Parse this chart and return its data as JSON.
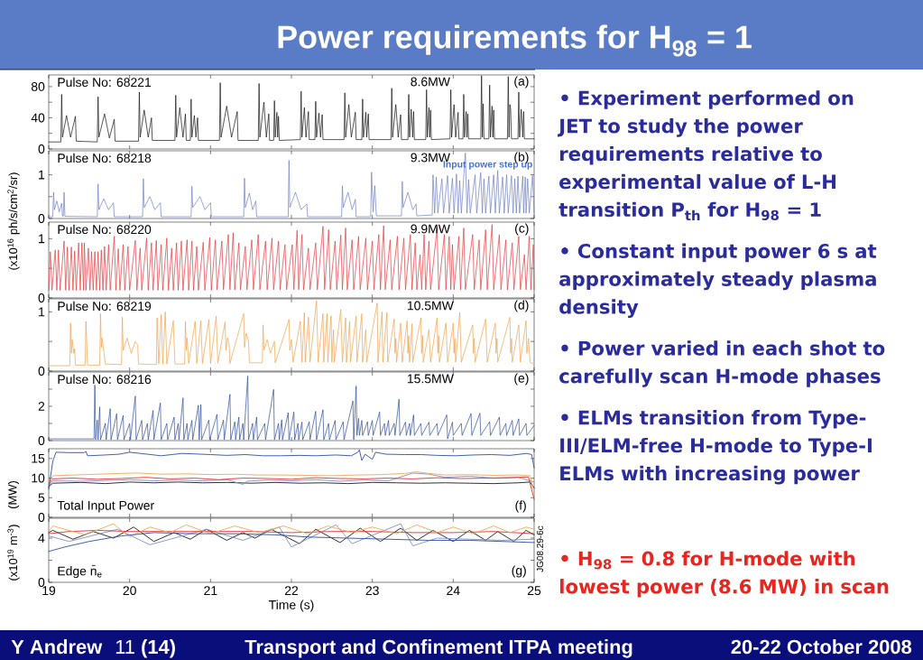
{
  "chart_data": [
    {
      "type": "other",
      "title": "Power requirements for H$_{98}$ = 1",
      "annotations": [
        "• Experiment performed on JET to study the power requirements relative to experimental value of L-H transition P$_{th}$ for H$_{98}$ = 1",
        "• Constant input power 6 s at approximately steady plasma density",
        "• Power varied in each shot to carefully scan H-mode phases",
        "• ELMs transition from Type-III/ELM-free H-mode to Type-I ELMs with increasing power",
        "• H$_{98}$ = 0.8 for H-mode with lowest power (8.6 MW) in scan",
        "Y Andrew",
        "11 **(14)**",
        "Transport and Confinement ITPA meeting",
        "20-22 October 2008"
      ]
    },
    {
      "type": "line",
      "xlim": [
        19,
        25
      ],
      "xticks": [
        19,
        20,
        21,
        22,
        23,
        24,
        25
      ],
      "ylim": [
        0,
        95
      ],
      "yticks": [
        0,
        {
          "value": 20,
          "label": null
        },
        40,
        {
          "value": 60,
          "label": null
        },
        80
      ],
      "tick_labels": "y",
      "annotations": [
        "Pulse No: 68221",
        "8.6MW",
        "(a)"
      ],
      "x": [
        19.0,
        19.15,
        19.16,
        19.17,
        19.22,
        19.27,
        19.33,
        19.34,
        19.6,
        19.61,
        19.62,
        19.69,
        19.75,
        19.81,
        19.82,
        20.11,
        20.12,
        20.13,
        20.18,
        20.23,
        20.27,
        20.28,
        20.56,
        20.57,
        20.58,
        20.62,
        20.66,
        20.69,
        20.7,
        20.75,
        20.76,
        20.77,
        20.8,
        20.82,
        20.84,
        20.85,
        21.11,
        21.12,
        21.13,
        21.2,
        21.26,
        21.33,
        21.34,
        21.59,
        21.6,
        21.61,
        21.66,
        21.69,
        21.72,
        21.73,
        21.78,
        21.79,
        21.8,
        21.82,
        21.83,
        21.84,
        21.85,
        22.11,
        22.12,
        22.13,
        22.16,
        22.18,
        22.21,
        22.22,
        22.29,
        22.3,
        22.31,
        22.34,
        22.36,
        22.38,
        22.39,
        22.65,
        22.66,
        22.67,
        22.71,
        22.74,
        22.79,
        22.8,
        22.87,
        22.88,
        22.89,
        22.92,
        22.93,
        22.95,
        22.96,
        23.23,
        23.24,
        23.25,
        23.29,
        23.32,
        23.35,
        23.36,
        23.44,
        23.45,
        23.46,
        23.48,
        23.5,
        23.51,
        23.52,
        23.66,
        23.67,
        23.68,
        23.7,
        23.71,
        23.72,
        23.73,
        23.96,
        23.97,
        23.98,
        24.01,
        24.03,
        24.06,
        24.07,
        24.12,
        24.13,
        24.14,
        24.16,
        24.17,
        24.18,
        24.19,
        24.34,
        24.35,
        24.36,
        24.37,
        24.38,
        24.44,
        24.45,
        24.46,
        24.48,
        24.49,
        24.5,
        24.51,
        24.67,
        24.68,
        24.69,
        24.7,
        24.71,
        24.72,
        24.8,
        24.81,
        24.82,
        24.84,
        24.86,
        24.87,
        24.88,
        25.0
      ],
      "series": [
        {
          "color": "#111111",
          "values": [
            9,
            9,
            70,
            15,
            43,
            15,
            42,
            10,
            9,
            67,
            15,
            45,
            14,
            38,
            10,
            10,
            73,
            15,
            50,
            15,
            40,
            11,
            11,
            69,
            15,
            53,
            15,
            45,
            11,
            11,
            64,
            15,
            43,
            15,
            40,
            11,
            11,
            85,
            15,
            55,
            15,
            48,
            11,
            11,
            84,
            15,
            60,
            15,
            45,
            11,
            11,
            62,
            15,
            47,
            15,
            42,
            11,
            12,
            74,
            15,
            53,
            15,
            48,
            12,
            12,
            61,
            15,
            46,
            15,
            44,
            12,
            12,
            72,
            15,
            57,
            15,
            47,
            12,
            12,
            64,
            15,
            47,
            15,
            45,
            12,
            12,
            78,
            15,
            57,
            15,
            44,
            12,
            12,
            70,
            15,
            51,
            15,
            48,
            12,
            12,
            76,
            15,
            53,
            15,
            50,
            12,
            13,
            76,
            15,
            57,
            15,
            47,
            13,
            13,
            70,
            15,
            48,
            15,
            45,
            13,
            13,
            94,
            15,
            58,
            13,
            13,
            82,
            15,
            55,
            15,
            50,
            13,
            13,
            93,
            15,
            57,
            50,
            13,
            13,
            73,
            15,
            51,
            15,
            48,
            13,
            13
          ]
        }
      ]
    },
    {
      "type": "line",
      "xlim": [
        19,
        25
      ],
      "xticks": [
        19,
        20,
        21,
        22,
        23,
        24,
        25
      ],
      "ylim": [
        0,
        1.55
      ],
      "yticks": [
        0,
        {
          "value": 0.5,
          "label": null
        },
        1
      ],
      "tick_labels": "y",
      "ylabel": "(x10$^{16}$ ph/s/cm$^{2}$/sr)",
      "annotations": [
        "Pulse No: 68218",
        "9.3MW",
        "(b)",
        "Input power step up"
      ],
      "x": [
        19.0,
        19.05,
        19.06,
        19.07,
        19.1,
        19.13,
        19.16,
        19.17,
        19.18,
        19.19,
        19.2,
        19.6,
        19.61,
        19.62,
        19.68,
        19.74,
        19.8,
        19.81,
        20.16,
        20.17,
        20.18,
        20.25,
        20.31,
        20.38,
        20.39,
        20.76,
        20.77,
        20.78,
        20.87,
        20.93,
        21.0,
        21.01,
        21.41,
        21.42,
        21.43,
        21.48,
        21.52,
        21.56,
        21.57,
        21.96,
        21.97,
        21.98,
        22.05,
        22.12,
        22.19,
        22.2,
        22.62,
        22.63,
        22.64,
        22.7,
        22.75,
        22.79,
        22.8,
        22.98,
        22.99,
        23.01,
        23.03,
        23.05,
        23.36,
        23.37,
        23.38,
        23.44,
        23.5,
        23.54,
        23.55,
        23.74,
        23.75,
        23.77,
        23.79,
        23.81,
        23.86,
        23.88,
        23.93,
        23.95,
        23.99,
        24.01,
        24.04,
        24.06,
        24.08,
        24.1,
        24.15,
        24.17,
        24.19,
        24.21,
        24.27,
        24.29,
        24.34,
        24.36,
        24.38,
        24.4,
        24.44,
        24.46,
        24.5,
        24.52,
        24.55,
        24.57,
        24.61,
        24.63,
        24.66,
        24.68,
        24.72,
        24.74,
        24.76,
        24.78,
        24.8,
        24.82,
        24.86,
        24.87,
        24.89,
        24.9,
        24.92,
        24.94,
        24.98,
        25.0
      ],
      "series": [
        {
          "color": "#6e7fc6",
          "values": [
            0.04,
            0.04,
            0.6,
            0.2,
            0.4,
            0.15,
            0.35,
            0.05,
            0.05,
            0.6,
            0.05,
            0.04,
            0.79,
            0.2,
            0.45,
            0.2,
            0.36,
            0.04,
            0.04,
            0.91,
            0.25,
            0.5,
            0.2,
            0.36,
            0.04,
            0.04,
            0.74,
            0.25,
            0.5,
            0.2,
            0.36,
            0.04,
            0.04,
            0.92,
            0.25,
            0.58,
            0.2,
            0.4,
            0.04,
            0.04,
            1.33,
            0.25,
            0.6,
            0.2,
            0.33,
            0.04,
            0.04,
            0.75,
            0.25,
            0.6,
            0.2,
            0.44,
            0.04,
            0.04,
            1.06,
            0.15,
            0.75,
            0.06,
            0.06,
            0.85,
            0.25,
            0.6,
            0.2,
            0.33,
            0.06,
            0.08,
            1.0,
            0.12,
            0.95,
            0.12,
            0.91,
            0.12,
            0.98,
            0.12,
            0.92,
            0.12,
            1.02,
            0.12,
            0.87,
            0.12,
            1.5,
            0.12,
            0.89,
            0.12,
            1.0,
            0.12,
            1.05,
            0.12,
            0.91,
            0.12,
            0.97,
            0.12,
            1.0,
            0.12,
            1.1,
            0.12,
            0.95,
            0.12,
            1.0,
            0.12,
            0.98,
            0.12,
            0.91,
            0.12,
            0.97,
            0.12,
            0.97,
            0.12,
            0.95,
            0.12,
            0.91,
            0.12,
            0.98,
            0.12
          ]
        }
      ]
    },
    {
      "type": "line",
      "xlim": [
        19,
        25
      ],
      "xticks": [
        19,
        20,
        21,
        22,
        23,
        24,
        25
      ],
      "ylim": [
        0,
        1.28
      ],
      "yticks": [
        0,
        {
          "value": 0.5,
          "label": null
        },
        1
      ],
      "tick_labels": "y",
      "annotations": [
        "Pulse No: 68220",
        "9.9MW",
        "(c)"
      ],
      "x": [
        19.0,
        19.02,
        19.04,
        19.08,
        19.1,
        19.12,
        19.14,
        19.19,
        19.21,
        19.23,
        19.25,
        19.28,
        19.3,
        19.32,
        19.34,
        19.37,
        19.39,
        19.41,
        19.43,
        19.44,
        19.46,
        19.49,
        19.51,
        19.53,
        19.55,
        19.57,
        19.59,
        19.61,
        19.63,
        19.65,
        19.67,
        19.69,
        19.71,
        19.74,
        19.76,
        19.81,
        19.83,
        19.86,
        19.88,
        19.92,
        19.94,
        19.98,
        20.0,
        20.07,
        20.09,
        20.13,
        20.15,
        20.21,
        20.23,
        20.27,
        20.29,
        20.33,
        20.35,
        20.39,
        20.41,
        20.46,
        20.48,
        20.52,
        20.54,
        20.58,
        20.6,
        20.64,
        20.66,
        20.71,
        20.73,
        20.77,
        20.79,
        20.83,
        20.85,
        20.91,
        20.93,
        20.99,
        21.01,
        21.06,
        21.08,
        21.14,
        21.16,
        21.22,
        21.24,
        21.28,
        21.3,
        21.35,
        21.37,
        21.43,
        21.45,
        21.51,
        21.53,
        21.59,
        21.61,
        21.68,
        21.7,
        21.76,
        21.78,
        21.84,
        21.86,
        21.92,
        21.94,
        22.01,
        22.03,
        22.07,
        22.09,
        22.13,
        22.15,
        22.21,
        22.23,
        22.3,
        22.32,
        22.39,
        22.41,
        22.46,
        22.48,
        22.54,
        22.56,
        22.61,
        22.63,
        22.67,
        22.69,
        22.75,
        22.77,
        22.83,
        22.85,
        22.92,
        22.94,
        23.0,
        23.02,
        23.08,
        23.1,
        23.14,
        23.16,
        23.22,
        23.24,
        23.31,
        23.33,
        23.39,
        23.41,
        23.47,
        23.49,
        23.53,
        23.55,
        23.59,
        23.61,
        23.64,
        23.66,
        23.7,
        23.72,
        23.8,
        23.82,
        23.89,
        23.91,
        23.95,
        23.97,
        23.99,
        24.01,
        24.07,
        24.09,
        24.13,
        24.15,
        24.24,
        24.26,
        24.32,
        24.34,
        24.4,
        24.42,
        24.48,
        24.5,
        24.57,
        24.59,
        24.65,
        24.67,
        24.73,
        24.75,
        24.81,
        24.83,
        24.88,
        24.9,
        24.94,
        24.96,
        24.99,
        25.0
      ],
      "series": [
        {
          "color": "#e23b3b",
          "values": [
            0.13,
            0.78,
            0.13,
            0.81,
            0.13,
            0.81,
            0.13,
            0.96,
            0.13,
            0.86,
            0.13,
            0.86,
            0.13,
            0.79,
            0.13,
            0.93,
            0.13,
            0.93,
            0.13,
            0.93,
            0.13,
            0.84,
            0.13,
            0.78,
            0.13,
            0.78,
            0.13,
            0.78,
            0.13,
            0.81,
            0.13,
            0.87,
            0.13,
            0.9,
            0.13,
            1.04,
            0.13,
            0.83,
            0.13,
            0.9,
            0.13,
            0.87,
            0.13,
            0.97,
            0.13,
            0.84,
            0.13,
            1.01,
            0.13,
            0.93,
            0.13,
            0.97,
            0.13,
            0.9,
            0.13,
            1.01,
            0.13,
            0.84,
            0.13,
            0.93,
            0.13,
            0.96,
            0.13,
            0.98,
            0.13,
            0.96,
            0.13,
            0.87,
            0.13,
            0.94,
            0.13,
            1.02,
            0.13,
            0.98,
            0.14,
            0.96,
            0.14,
            1.07,
            0.14,
            1.1,
            0.14,
            0.93,
            0.14,
            0.87,
            0.14,
            0.98,
            0.14,
            1.07,
            0.14,
            0.96,
            0.14,
            1.01,
            0.14,
            0.96,
            0.14,
            0.9,
            0.14,
            0.9,
            0.14,
            1.14,
            0.14,
            1.07,
            0.14,
            0.84,
            0.14,
            0.93,
            0.14,
            1.21,
            0.14,
            1.15,
            0.14,
            0.96,
            0.14,
            1.06,
            0.14,
            1.18,
            0.14,
            0.98,
            0.14,
            1.04,
            0.14,
            1.01,
            0.14,
            0.96,
            0.14,
            1.07,
            0.14,
            1.22,
            0.14,
            0.98,
            0.14,
            1.04,
            0.14,
            1.01,
            0.14,
            1.07,
            0.14,
            0.93,
            0.14,
            0.73,
            0.14,
            1.07,
            0.14,
            0.96,
            0.14,
            1.18,
            0.14,
            1.07,
            0.14,
            1.04,
            0.14,
            0.9,
            0.14,
            1.04,
            0.14,
            1.18,
            0.14,
            1.07,
            0.14,
            0.98,
            0.14,
            1.15,
            0.14,
            1.24,
            0.14,
            1.07,
            0.14,
            0.98,
            0.14,
            0.93,
            0.14,
            1.04,
            0.14,
            0.73,
            0.14,
            1.04,
            0.14,
            0.9,
            0.14
          ]
        }
      ]
    },
    {
      "type": "line",
      "xlim": [
        19,
        25
      ],
      "xticks": [
        19,
        20,
        21,
        22,
        23,
        24,
        25
      ],
      "ylim": [
        0,
        1.22
      ],
      "yticks": [
        0,
        {
          "value": 0.5,
          "label": null
        },
        1
      ],
      "tick_labels": "y",
      "annotations": [
        "Pulse No: 68219",
        "10.5MW",
        "(d)"
      ],
      "x": [
        19.0,
        19.26,
        19.27,
        19.28,
        19.29,
        19.31,
        19.32,
        19.33,
        19.45,
        19.46,
        19.48,
        19.63,
        19.64,
        19.65,
        19.66,
        19.7,
        19.9,
        19.91,
        19.92,
        19.97,
        20.02,
        20.07,
        20.1,
        20.11,
        20.33,
        20.34,
        20.36,
        20.39,
        20.41,
        20.44,
        20.46,
        20.54,
        20.56,
        20.68,
        20.69,
        20.7,
        20.71,
        20.73,
        20.81,
        20.83,
        20.88,
        20.9,
        20.98,
        21.0,
        21.07,
        21.09,
        21.18,
        21.19,
        21.21,
        21.23,
        21.24,
        21.41,
        21.42,
        21.44,
        21.47,
        21.48,
        21.64,
        21.65,
        21.66,
        21.7,
        21.74,
        21.79,
        21.8,
        21.97,
        21.98,
        22.0,
        22.02,
        22.11,
        22.13,
        22.16,
        22.17,
        22.21,
        22.23,
        22.31,
        22.33,
        22.39,
        22.4,
        22.44,
        22.45,
        22.49,
        22.5,
        22.52,
        22.53,
        22.61,
        22.63,
        22.67,
        22.68,
        22.72,
        22.73,
        22.8,
        22.81,
        22.87,
        22.88,
        22.92,
        22.93,
        23.06,
        23.07,
        23.12,
        23.13,
        23.18,
        23.19,
        23.27,
        23.28,
        23.29,
        23.3,
        23.35,
        23.37,
        23.43,
        23.44,
        23.45,
        23.46,
        23.49,
        23.5,
        23.6,
        23.61,
        23.62,
        23.63,
        23.7,
        23.72,
        23.8,
        23.81,
        23.82,
        23.83,
        23.91,
        23.93,
        24.0,
        24.01,
        24.02,
        24.03,
        24.08,
        24.1,
        24.24,
        24.25,
        24.26,
        24.27,
        24.4,
        24.42,
        24.52,
        24.53,
        24.54,
        24.55,
        24.7,
        24.71,
        24.72,
        24.73,
        24.81,
        24.83,
        24.9,
        24.91,
        24.93,
        24.95,
        24.99
      ],
      "series": [
        {
          "color": "#f3a24a",
          "values": [
            0.09,
            0.09,
            0.81,
            0.3,
            0.53,
            0.3,
            0.38,
            0.1,
            0.1,
            0.84,
            0.1,
            0.1,
            0.97,
            0.4,
            0.56,
            0.12,
            0.11,
            0.91,
            0.35,
            0.56,
            0.3,
            0.5,
            0.44,
            0.12,
            0.11,
            0.9,
            0.12,
            0.95,
            0.12,
            1.0,
            0.12,
            0.85,
            0.12,
            0.12,
            0.84,
            0.35,
            0.56,
            0.13,
            0.84,
            0.13,
            0.85,
            0.13,
            0.87,
            0.13,
            0.93,
            0.13,
            0.83,
            0.35,
            0.56,
            0.45,
            0.13,
            0.97,
            0.4,
            0.64,
            0.5,
            0.14,
            0.14,
            0.78,
            0.35,
            0.53,
            0.3,
            0.5,
            0.14,
            0.87,
            0.35,
            0.53,
            0.15,
            0.84,
            0.15,
            0.99,
            0.15,
            0.91,
            0.15,
            1.19,
            0.15,
            0.97,
            0.15,
            0.97,
            0.15,
            0.93,
            0.15,
            0.7,
            0.15,
            1.04,
            0.15,
            0.9,
            0.15,
            0.84,
            0.15,
            0.93,
            0.15,
            0.97,
            0.15,
            0.7,
            0.15,
            1.15,
            0.15,
            1.0,
            0.15,
            0.99,
            0.15,
            0.88,
            0.3,
            0.55,
            0.15,
            0.81,
            0.15,
            0.85,
            0.3,
            0.6,
            0.15,
            0.8,
            0.15,
            0.9,
            0.3,
            0.6,
            0.15,
            0.7,
            0.15,
            0.9,
            0.3,
            0.6,
            0.15,
            0.81,
            0.15,
            0.81,
            0.3,
            0.55,
            0.15,
            0.99,
            0.15,
            0.78,
            0.3,
            0.55,
            0.15,
            0.88,
            0.15,
            0.81,
            0.3,
            0.55,
            0.15,
            0.91,
            0.3,
            0.55,
            0.15,
            0.78,
            0.15,
            0.85,
            0.3,
            0.55,
            0.15,
            0.12
          ]
        }
      ]
    },
    {
      "type": "line",
      "xlim": [
        19,
        25
      ],
      "xticks": [
        19,
        20,
        21,
        22,
        23,
        24,
        25
      ],
      "ylim": [
        0,
        4
      ],
      "yticks": [
        0,
        {
          "value": 1,
          "label": null
        },
        2,
        {
          "value": 3,
          "label": null
        }
      ],
      "tick_labels": "y",
      "annotations": [
        "Pulse No: 68216",
        "15.5MW",
        "(e)"
      ],
      "x": [
        19.0,
        19.56,
        19.57,
        19.58,
        19.6,
        19.61,
        19.63,
        19.64,
        19.7,
        19.71,
        19.76,
        19.77,
        19.84,
        19.85,
        19.92,
        19.93,
        20.0,
        20.01,
        20.07,
        20.08,
        20.15,
        20.16,
        20.22,
        20.23,
        20.29,
        20.3,
        20.38,
        20.39,
        20.46,
        20.47,
        20.55,
        20.56,
        20.6,
        20.61,
        20.66,
        20.67,
        20.71,
        20.72,
        20.77,
        20.78,
        20.85,
        20.86,
        20.88,
        20.89,
        20.98,
        20.99,
        21.08,
        21.09,
        21.16,
        21.17,
        21.24,
        21.25,
        21.3,
        21.31,
        21.35,
        21.36,
        21.4,
        21.41,
        21.46,
        21.47,
        21.52,
        21.53,
        21.57,
        21.58,
        21.67,
        21.68,
        21.78,
        21.79,
        21.84,
        21.85,
        21.88,
        21.89,
        21.96,
        21.97,
        22.03,
        22.04,
        22.08,
        22.09,
        22.13,
        22.14,
        22.22,
        22.23,
        22.3,
        22.31,
        22.39,
        22.4,
        22.46,
        22.47,
        22.54,
        22.55,
        22.64,
        22.65,
        22.76,
        22.77,
        22.8,
        22.81,
        22.83,
        22.84,
        22.87,
        22.88,
        22.94,
        22.95,
        23.0,
        23.01,
        23.09,
        23.1,
        23.15,
        23.16,
        23.2,
        23.21,
        23.27,
        23.28,
        23.33,
        23.34,
        23.41,
        23.42,
        23.46,
        23.47,
        23.51,
        23.52,
        23.6,
        23.61,
        23.7,
        23.71,
        23.8,
        23.81,
        23.92,
        23.93,
        23.99,
        24.0,
        24.1,
        24.11,
        24.22,
        24.23,
        24.33,
        24.34,
        24.45,
        24.46,
        24.57,
        24.58,
        24.65,
        24.66,
        24.73,
        24.74,
        24.81,
        24.82,
        24.9,
        24.91,
        25.0
      ],
      "series": [
        {
          "color": "#2c4d9c",
          "values": [
            0.1,
            0.1,
            3.24,
            0.05,
            1.2,
            0.05,
            1.96,
            0.05,
            1.0,
            0.05,
            1.86,
            0.05,
            1.57,
            0.05,
            1.47,
            0.05,
            1.0,
            0.05,
            2.59,
            0.05,
            1.18,
            0.05,
            1.0,
            0.05,
            1.76,
            0.05,
            2.2,
            0.05,
            1.0,
            0.05,
            1.37,
            0.05,
            1.0,
            0.05,
            2.49,
            0.05,
            1.0,
            0.05,
            1.18,
            0.05,
            2.06,
            0.05,
            2.1,
            0.05,
            1.2,
            0.05,
            1.53,
            0.05,
            1.2,
            0.05,
            2.7,
            0.05,
            1.1,
            0.05,
            1.37,
            0.05,
            1.0,
            0.05,
            3.76,
            0.05,
            1.0,
            0.05,
            1.37,
            0.05,
            1.0,
            0.05,
            2.98,
            0.05,
            1.0,
            0.05,
            1.22,
            0.05,
            1.63,
            0.05,
            1.67,
            0.05,
            1.0,
            0.05,
            1.08,
            0.05,
            1.1,
            0.05,
            1.71,
            0.05,
            1.8,
            0.05,
            1.0,
            0.05,
            1.18,
            0.05,
            1.1,
            0.05,
            2.31,
            0.05,
            3.18,
            0.3,
            1.3,
            0.3,
            1.18,
            0.3,
            1.1,
            0.3,
            1.18,
            0.3,
            1.67,
            0.3,
            1.0,
            0.3,
            1.18,
            0.3,
            1.0,
            0.3,
            2.41,
            0.3,
            1.08,
            0.3,
            1.0,
            0.3,
            1.5,
            0.3,
            1.0,
            0.3,
            1.08,
            0.3,
            1.0,
            0.3,
            1.5,
            0.1,
            1.08,
            0.3,
            1.0,
            0.3,
            1.57,
            0.3,
            1.6,
            0.3,
            1.1,
            0.3,
            1.37,
            0.3,
            1.0,
            0.3,
            1.18,
            0.3,
            1.27,
            0.3,
            1.0,
            0.3,
            0.88
          ]
        }
      ]
    },
    {
      "type": "line",
      "xlim": [
        19,
        25
      ],
      "xticks": [
        19,
        20,
        21,
        22,
        23,
        24,
        25
      ],
      "ylim": [
        0,
        17.5
      ],
      "yticks": [
        0,
        5,
        10,
        15
      ],
      "tick_labels": "y",
      "ylabel": "(MW)",
      "annotations": [
        "Total Input Power",
        "(f)"
      ],
      "series": [
        {
          "color": "#1a1a1a",
          "x": [
            19.0,
            19.05,
            19.4,
            19.7,
            20.0,
            20.3,
            20.6,
            20.9,
            21.2,
            21.5,
            21.8,
            22.1,
            22.4,
            22.7,
            23.0,
            23.3,
            23.6,
            23.9,
            24.2,
            24.5,
            24.8,
            24.95,
            25.0
          ],
          "values": [
            7.8,
            8.7,
            8.9,
            8.6,
            9.0,
            8.8,
            9.0,
            8.8,
            8.9,
            8.7,
            8.9,
            8.7,
            8.8,
            8.6,
            8.9,
            8.8,
            8.7,
            8.8,
            8.7,
            8.6,
            8.8,
            9.0,
            7.5
          ]
        },
        {
          "color": "#7f8fc9",
          "x": [
            19.0,
            19.05,
            19.4,
            19.7,
            20.0,
            20.3,
            20.6,
            20.9,
            21.2,
            21.4,
            21.45,
            21.7,
            22.0,
            22.3,
            22.6,
            22.9,
            23.2,
            23.5,
            23.7,
            23.9,
            24.2,
            24.5,
            24.8,
            25.0
          ],
          "values": [
            8.0,
            9.3,
            9.2,
            9.4,
            9.6,
            9.3,
            9.5,
            9.3,
            9.6,
            8.4,
            9.2,
            9.5,
            9.3,
            9.6,
            9.2,
            9.5,
            9.3,
            11.3,
            11.0,
            10.2,
            10.5,
            10.0,
            10.2,
            9.0
          ]
        },
        {
          "color": "#e0312f",
          "x": [
            19.0,
            19.05,
            19.3,
            19.6,
            19.9,
            20.2,
            20.5,
            20.8,
            21.1,
            21.4,
            21.7,
            22.0,
            22.3,
            22.6,
            22.9,
            23.2,
            23.5,
            23.8,
            24.1,
            24.4,
            24.7,
            24.93,
            25.0
          ],
          "values": [
            8.5,
            9.8,
            10.0,
            9.7,
            9.9,
            10.2,
            9.8,
            10.0,
            9.6,
            10.0,
            9.9,
            9.7,
            10.1,
            9.9,
            9.8,
            10.0,
            9.8,
            10.1,
            9.9,
            10.0,
            10.1,
            10.3,
            4.6
          ]
        },
        {
          "color": "#f4a850",
          "x": [
            19.0,
            19.05,
            19.3,
            19.6,
            19.9,
            20.1,
            20.4,
            20.7,
            21.0,
            21.3,
            21.6,
            21.9,
            22.2,
            22.5,
            22.8,
            23.1,
            23.4,
            23.55,
            23.7,
            23.9,
            24.2,
            24.5,
            24.8,
            24.95,
            25.0
          ],
          "values": [
            9.0,
            10.6,
            10.8,
            11.0,
            11.2,
            11.3,
            11.0,
            11.1,
            10.9,
            11.0,
            10.8,
            10.8,
            10.7,
            10.6,
            10.8,
            10.9,
            11.2,
            11.6,
            11.2,
            10.8,
            10.9,
            10.7,
            10.8,
            10.6,
            6.5
          ]
        },
        {
          "color": "#2f4f9f",
          "x": [
            19.0,
            19.05,
            19.09,
            19.25,
            19.44,
            19.46,
            19.48,
            19.7,
            19.87,
            20.0,
            20.22,
            20.39,
            20.65,
            21.0,
            21.2,
            21.43,
            21.65,
            21.87,
            22.1,
            22.3,
            22.55,
            22.74,
            22.82,
            22.84,
            22.87,
            22.91,
            23.0,
            23.04,
            23.17,
            23.4,
            23.6,
            23.8,
            24.03,
            24.25,
            24.47,
            24.7,
            24.91,
            24.97,
            25.0
          ],
          "values": [
            7.2,
            14.3,
            16.6,
            16.5,
            16.5,
            16.8,
            15.7,
            15.9,
            16.1,
            16.6,
            16.1,
            15.7,
            16.3,
            16.0,
            15.8,
            16.0,
            15.7,
            15.7,
            15.8,
            15.7,
            15.9,
            15.7,
            16.6,
            17.2,
            14.5,
            16.1,
            14.8,
            16.6,
            16.1,
            16.0,
            16.0,
            15.8,
            15.7,
            15.9,
            16.0,
            15.8,
            16.3,
            16.0,
            12.6
          ]
        }
      ]
    },
    {
      "type": "line",
      "xlim": [
        19,
        25
      ],
      "xticks": [
        19,
        20,
        21,
        22,
        23,
        24,
        25
      ],
      "ylim": [
        0,
        5.8
      ],
      "yticks": [
        0,
        {
          "value": 2,
          "label": null
        },
        4
      ],
      "xlabel": "Time (s)",
      "ylabel": "(x10$^{19}$ m$^{-3}$)",
      "annotations": [
        "Edge n̄$_{e}$",
        "(g)",
        "JG08.29-6c"
      ],
      "series": [
        {
          "color": "#1a1a1a",
          "x": [
            19.0,
            19.05,
            19.3,
            19.55,
            19.8,
            20.05,
            20.3,
            20.55,
            20.75,
            20.95,
            21.2,
            21.4,
            21.55,
            21.75,
            22.1,
            22.3,
            22.6,
            22.85,
            23.1,
            23.35,
            23.55,
            23.75,
            24.0,
            24.2,
            24.4,
            24.55,
            24.75,
            24.9,
            25.0
          ],
          "values": [
            4.5,
            4.7,
            3.9,
            4.6,
            4.0,
            5.0,
            3.7,
            4.5,
            3.9,
            4.8,
            3.8,
            4.5,
            4.0,
            4.8,
            3.5,
            4.8,
            3.6,
            4.9,
            3.7,
            4.9,
            3.8,
            4.7,
            3.7,
            4.7,
            3.8,
            4.6,
            3.7,
            4.7,
            4.3
          ]
        },
        {
          "color": "#7f8fc9",
          "x": [
            19.0,
            19.25,
            19.85,
            20.25,
            20.95,
            21.4,
            21.85,
            22.0,
            22.55,
            22.75,
            23.35,
            23.5,
            23.8,
            24.2,
            24.6,
            25.0
          ],
          "values": [
            4.2,
            3.7,
            4.8,
            3.4,
            4.8,
            3.8,
            5.0,
            3.2,
            5.2,
            3.5,
            5.3,
            3.3,
            4.0,
            3.9,
            3.8,
            3.9
          ]
        },
        {
          "color": "#e0312f",
          "x": [
            19.0,
            19.25,
            19.6,
            20.0,
            20.5,
            21.0,
            21.5,
            22.0,
            22.5,
            23.0,
            23.5,
            24.0,
            24.5,
            25.0
          ],
          "values": [
            4.4,
            4.6,
            4.7,
            4.6,
            4.6,
            4.6,
            4.6,
            4.5,
            4.6,
            4.6,
            4.5,
            4.5,
            4.6,
            4.4
          ]
        },
        {
          "color": "#f4a850",
          "x": [
            19.0,
            19.05,
            19.45,
            19.8,
            20.0,
            20.25,
            20.5,
            20.7,
            21.0,
            21.3,
            21.6,
            21.9,
            22.2,
            22.45,
            22.75,
            23.0,
            23.3,
            23.55,
            23.8,
            24.0,
            24.25,
            24.5,
            24.7,
            24.9,
            25.0
          ],
          "values": [
            4.6,
            5.1,
            4.3,
            5.3,
            4.1,
            5.0,
            4.5,
            5.2,
            4.4,
            5.1,
            4.5,
            5.1,
            4.4,
            5.1,
            4.5,
            5.0,
            4.4,
            5.2,
            4.5,
            5.0,
            4.4,
            5.1,
            4.5,
            5.0,
            4.8
          ]
        },
        {
          "color": "#2f4f9f",
          "x": [
            19.0,
            19.2,
            19.5,
            19.9,
            20.3,
            20.8,
            21.3,
            21.8,
            22.2,
            22.7,
            23.2,
            23.7,
            24.2,
            24.6,
            25.0
          ],
          "values": [
            2.8,
            3.2,
            3.7,
            4.2,
            4.5,
            4.4,
            4.4,
            4.3,
            4.1,
            4.0,
            3.9,
            3.8,
            3.8,
            3.7,
            3.6
          ]
        }
      ]
    }
  ]
}
